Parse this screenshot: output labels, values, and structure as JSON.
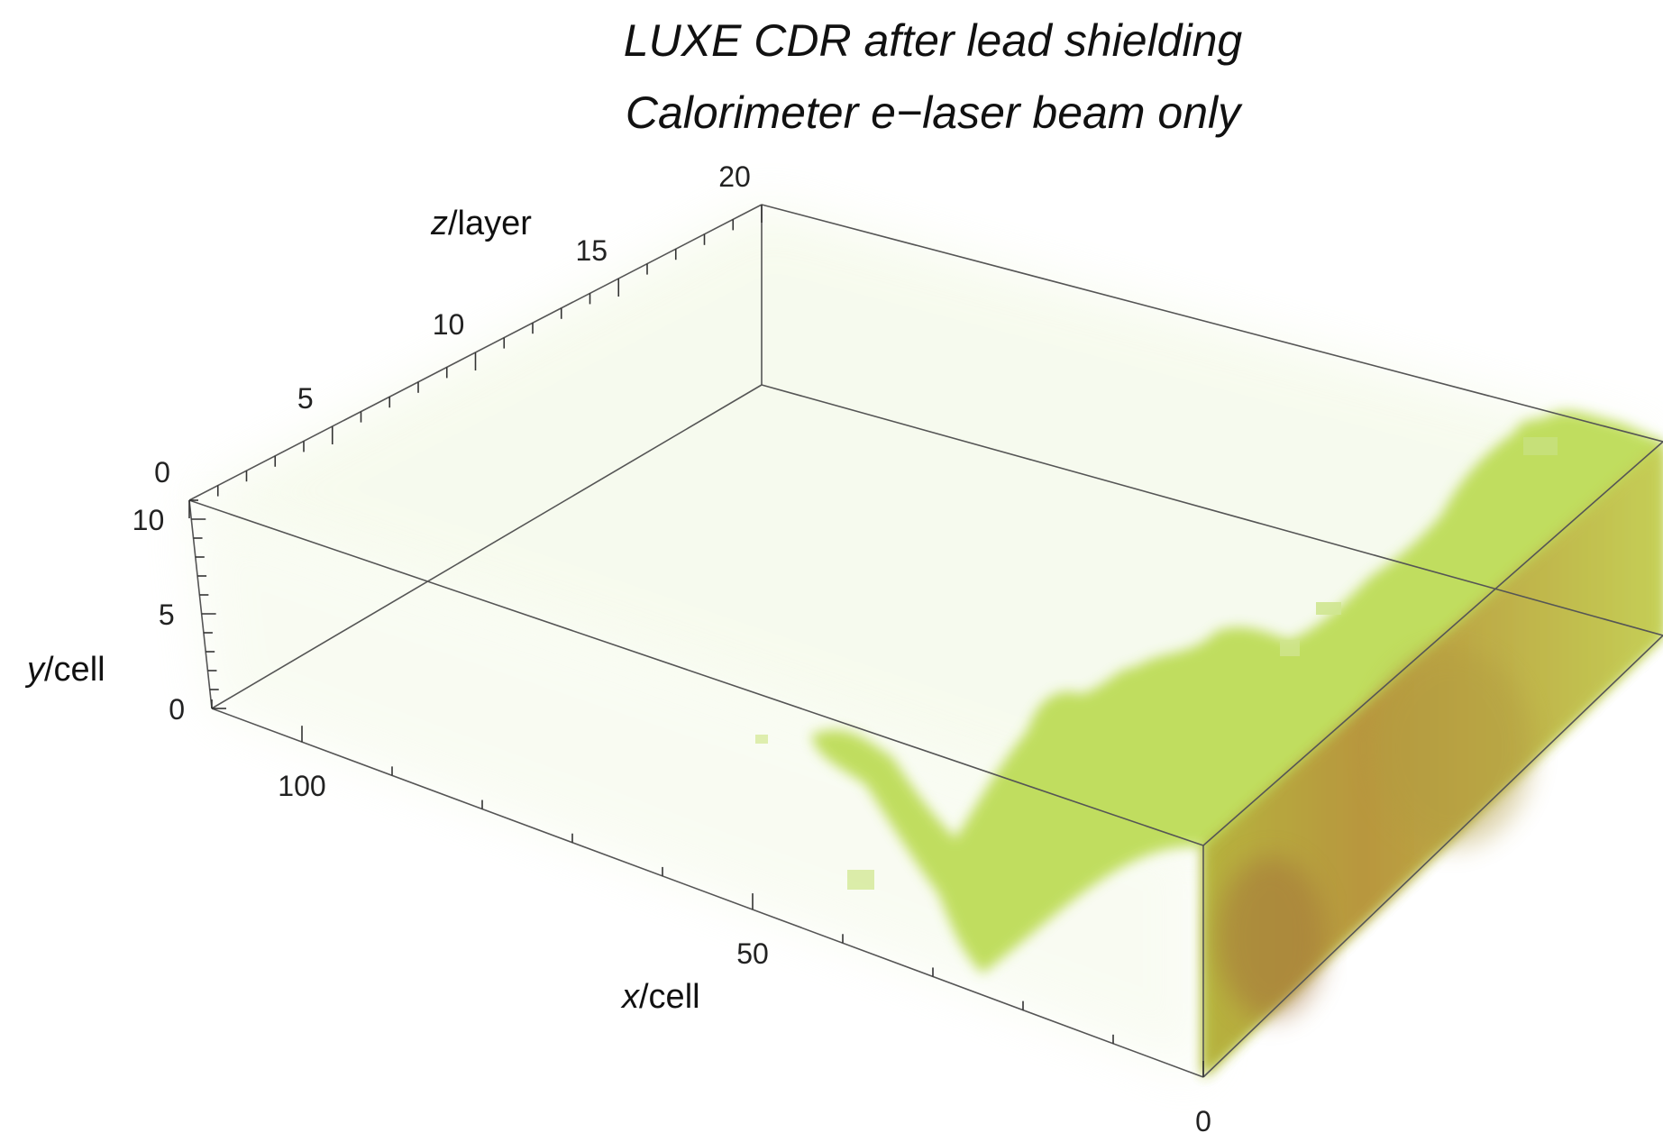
{
  "chart_data": {
    "type": "heatmap",
    "title_lines": [
      "LUXE CDR after lead shielding",
      "Calorimeter e−laser beam only"
    ],
    "axes": {
      "x": {
        "var": "x",
        "unit": "/cell",
        "ticks": [
          0,
          50,
          100
        ],
        "range": [
          0,
          110
        ]
      },
      "y": {
        "var": "y",
        "unit": "/cell",
        "ticks": [
          0,
          5,
          10
        ],
        "range": [
          0,
          11
        ]
      },
      "z": {
        "var": "z",
        "unit": "/layer",
        "ticks": [
          0,
          5,
          10,
          15,
          20
        ],
        "range": [
          0,
          20
        ]
      }
    },
    "colors": {
      "low": "#c4e05a",
      "mid": "#b8d244",
      "high": "#a88a3a",
      "edge": "#555555"
    }
  }
}
